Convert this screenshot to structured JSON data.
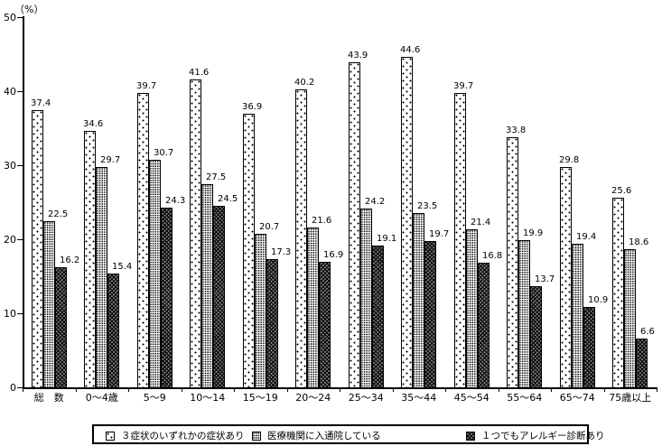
{
  "chart": {
    "y_axis_unit": "（%）",
    "chart_data": {
      "type": "bar",
      "categories": [
        "総　数",
        "0～4歳",
        "5～9",
        "10～14",
        "15～19",
        "20～24",
        "25～34",
        "35～44",
        "45～54",
        "55～64",
        "65～74",
        "75歳以上"
      ],
      "series": [
        {
          "name": "３症状のいずれかの症状あり",
          "pattern": "sparse-dots",
          "values": [
            37.4,
            34.6,
            39.7,
            41.6,
            36.9,
            40.2,
            43.9,
            44.6,
            39.7,
            33.8,
            29.8,
            25.6
          ]
        },
        {
          "name": "医療機関に入通院している",
          "pattern": "dense-dots",
          "values": [
            22.5,
            29.7,
            30.7,
            27.5,
            20.7,
            21.6,
            24.2,
            23.5,
            21.4,
            19.9,
            19.4,
            18.6
          ]
        },
        {
          "name": "１つでもアレルギー診断あり",
          "pattern": "dark-crosshatch",
          "values": [
            16.2,
            15.4,
            24.3,
            24.5,
            17.3,
            16.9,
            19.1,
            19.7,
            16.8,
            13.7,
            10.9,
            6.6
          ]
        }
      ],
      "title": "",
      "xlabel": "",
      "ylabel": "（%）",
      "ylim": [
        0,
        50
      ],
      "ytick_step": 10,
      "grid": false,
      "legend_position": "bottom",
      "bar_outline_color": "#000000",
      "dark_series_color": "#7a7a7a"
    }
  }
}
